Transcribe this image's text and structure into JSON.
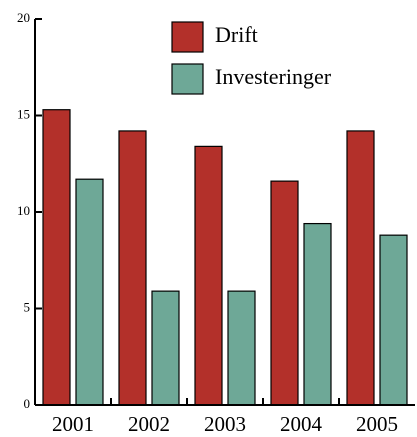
{
  "chart_data": {
    "type": "bar",
    "categories": [
      "2001",
      "2002",
      "2003",
      "2004",
      "2005"
    ],
    "series": [
      {
        "name": "Drift",
        "color": "#b3302a",
        "values": [
          15.3,
          14.2,
          13.4,
          11.6,
          14.2
        ]
      },
      {
        "name": "Investeringer",
        "color": "#6ea897",
        "values": [
          11.7,
          5.9,
          5.9,
          9.4,
          8.8
        ]
      }
    ],
    "ylim": [
      0,
      20
    ],
    "yticks": [
      0,
      5,
      10,
      15,
      20
    ],
    "legend": "top-center"
  }
}
